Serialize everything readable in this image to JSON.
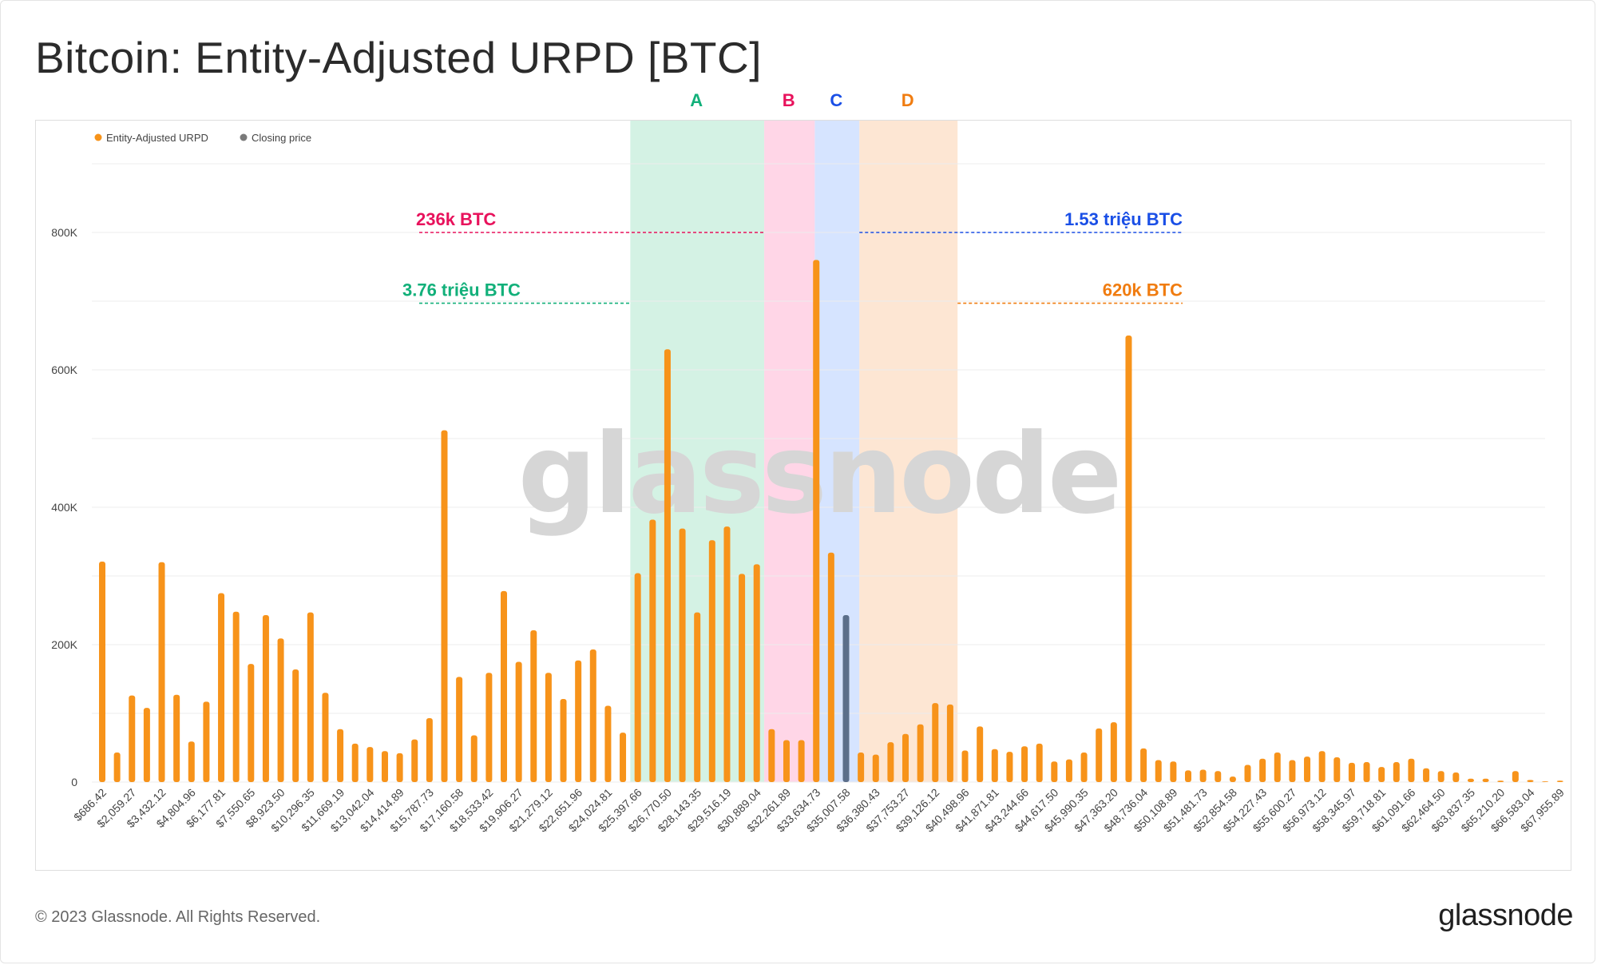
{
  "page": {
    "title": "Bitcoin: Entity-Adjusted URPD [BTC]",
    "footer_copyright": "© 2023 Glassnode. All Rights Reserved.",
    "footer_logo": "glassnode",
    "watermark": "glassnode"
  },
  "chart_data": {
    "type": "bar",
    "title": "Bitcoin: Entity-Adjusted URPD [BTC]",
    "xlabel": "",
    "ylabel": "",
    "ylim": [
      0,
      900000
    ],
    "yticks": [
      0,
      200000,
      400000,
      600000,
      800000
    ],
    "ytick_labels": [
      "0",
      "200K",
      "400K",
      "600K",
      "800K"
    ],
    "grid": true,
    "legend_position": "top-left",
    "colors": {
      "urpd": "#f7931a",
      "closing": "#5b6e8a"
    },
    "legend": [
      {
        "name": "Entity-Adjusted URPD",
        "color": "#f7931a"
      },
      {
        "name": "Closing price",
        "color": "#7a7a7a"
      }
    ],
    "xtick_labels": [
      "$686.42",
      "$2,059.27",
      "$3,432.12",
      "$4,804.96",
      "$6,177.81",
      "$7,550.65",
      "$8,923.50",
      "$10,296.35",
      "$11,669.19",
      "$13,042.04",
      "$14,414.89",
      "$15,787.73",
      "$17,160.58",
      "$18,533.42",
      "$19,906.27",
      "$21,279.12",
      "$22,651.96",
      "$24,024.81",
      "$25,397.66",
      "$26,770.50",
      "$28,143.35",
      "$29,516.19",
      "$30,889.04",
      "$32,261.89",
      "$33,634.73",
      "$35,007.58",
      "$36,380.43",
      "$37,753.27",
      "$39,126.12",
      "$40,498.96",
      "$41,871.81",
      "$43,244.66",
      "$44,617.50",
      "$45,990.35",
      "$47,363.20",
      "$48,736.04",
      "$50,108.89",
      "$51,481.73",
      "$52,854.58",
      "$54,227.43",
      "$55,600.27",
      "$56,973.12",
      "$58,345.97",
      "$59,718.81",
      "$61,091.66",
      "$62,464.50",
      "$63,837.35",
      "$65,210.20",
      "$66,583.04",
      "$67,955.89"
    ],
    "values": [
      321000,
      43000,
      126000,
      108000,
      320000,
      127000,
      59000,
      117000,
      275000,
      248000,
      172000,
      243000,
      209000,
      164000,
      247000,
      130000,
      77000,
      56000,
      51000,
      45000,
      42000,
      62000,
      93000,
      512000,
      153000,
      68000,
      159000,
      278000,
      175000,
      221000,
      159000,
      121000,
      177000,
      193000,
      111000,
      72000,
      304000,
      382000,
      630000,
      369000,
      247000,
      352000,
      372000,
      303000,
      317000,
      77000,
      61000,
      61000,
      760000,
      334000,
      243000,
      43000,
      40000,
      58000,
      70000,
      84000,
      115000,
      113000,
      46000,
      81000,
      48000,
      44000,
      52000,
      56000,
      30000,
      33000,
      43000,
      78000,
      87000,
      650000,
      49000,
      32000,
      30000,
      17000,
      18000,
      16000,
      8000,
      25000,
      34000,
      43000,
      32000,
      37000,
      45000,
      36000,
      28000,
      29000,
      22000,
      29000,
      34000,
      20000,
      16000,
      14000,
      5000,
      5000,
      2000,
      16000,
      3000,
      1000,
      2000
    ],
    "closing_price_index": 50,
    "zones": [
      {
        "label": "A",
        "from_index": 35.5,
        "to_index": 44.5,
        "color": "#d4f2e4",
        "label_color": "#12b07a"
      },
      {
        "label": "B",
        "from_index": 44.5,
        "to_index": 47.9,
        "color": "#ffd6e7",
        "label_color": "#e8125c"
      },
      {
        "label": "C",
        "from_index": 47.9,
        "to_index": 50.9,
        "color": "#d6e4ff",
        "label_color": "#1a4fe6"
      },
      {
        "label": "D",
        "from_index": 50.9,
        "to_index": 57.5,
        "color": "#fde6d3",
        "label_color": "#f07c10"
      }
    ],
    "annotations": [
      {
        "text": "236k BTC",
        "color": "#e8125c",
        "y_value": 800000
      },
      {
        "text": "3.76 triệu BTC",
        "color": "#12b07a",
        "y_value": 697000
      },
      {
        "text": "1.53 triệu BTC",
        "color": "#1a4fe6",
        "y_value": 800000
      },
      {
        "text": "620k BTC",
        "color": "#f07c10",
        "y_value": 697000
      }
    ]
  }
}
